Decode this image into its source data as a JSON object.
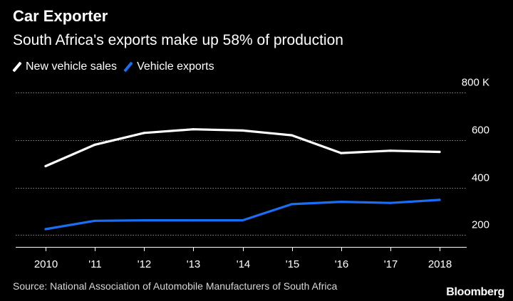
{
  "title": "Car Exporter",
  "subtitle": "South Africa's exports make up 58% of production",
  "source": "Source: National Association of Automobile Manufacturers of South Africa",
  "brand": "Bloomberg",
  "colors": {
    "background": "#000000",
    "sales": "#ffffff",
    "exports": "#1a6ef5",
    "grid": "#8a8a8a"
  },
  "chart_data": {
    "type": "line",
    "title": "Car Exporter",
    "subtitle": "South Africa's exports make up 58% of production",
    "xlabel": "",
    "ylabel": "",
    "x": [
      "2010",
      "'11",
      "'12",
      "'13",
      "'14",
      "'15",
      "'16",
      "'17",
      "2018"
    ],
    "ylim": [
      150,
      800
    ],
    "yticks": [
      {
        "value": 800,
        "label": "800 K"
      },
      {
        "value": 600,
        "label": "600"
      },
      {
        "value": 400,
        "label": "400"
      },
      {
        "value": 200,
        "label": "200"
      }
    ],
    "legend_position": "top-left",
    "series": [
      {
        "name": "New vehicle sales",
        "color": "#ffffff",
        "values": [
          490,
          580,
          630,
          645,
          640,
          620,
          545,
          555,
          550
        ]
      },
      {
        "name": "Vehicle exports",
        "color": "#1a6ef5",
        "values": [
          225,
          260,
          262,
          262,
          262,
          330,
          340,
          335,
          348
        ]
      }
    ]
  }
}
